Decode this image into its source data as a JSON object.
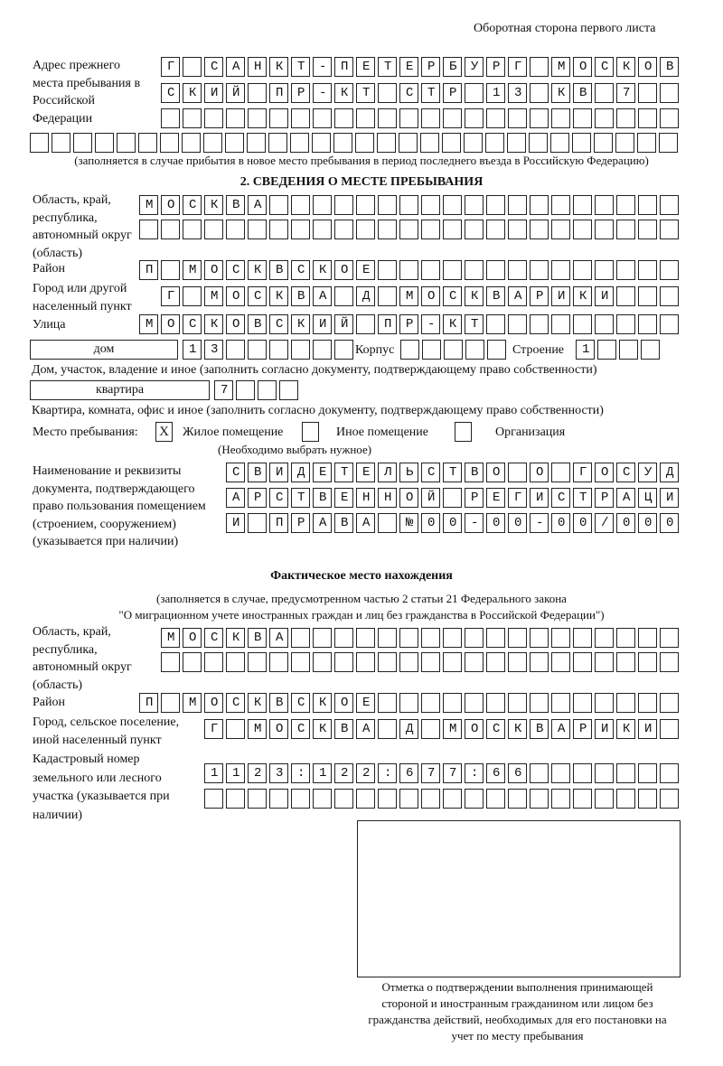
{
  "header": {
    "page_side": "Оборотная сторона первого листа"
  },
  "previous_address": {
    "label": "Адрес прежнего места пребывания в Российской Федерации",
    "rows": [
      "Г САНКТ-ПЕТЕРБУРГ МОСКОВ",
      "СКИЙ ПР-КТ СТР 13 КВ 7  ",
      "                        ",
      "                              "
    ],
    "note": "(заполняется в случае прибытия в новое место пребывания в период последнего въезда в Российскую Федерацию)"
  },
  "section2": {
    "title": "2. СВЕДЕНИЯ О МЕСТЕ ПРЕБЫВАНИЯ",
    "region": {
      "label": "Область, край, республика, автономный округ (область)",
      "rows": [
        "МОСКВА                   ",
        "                         "
      ]
    },
    "district": {
      "label": "Район",
      "rows": [
        "П МОСКВСКОЕ              "
      ]
    },
    "city": {
      "label": "Город или другой населенный пункт",
      "rows": [
        "Г МОСКВА Д МОСКВАРИКИ   "
      ]
    },
    "street": {
      "label": "Улица",
      "rows": [
        "МОСКОВСКИЙ ПР-КТ         "
      ]
    },
    "house": {
      "type": "дом",
      "number": "13      ",
      "korpus_label": "Корпус",
      "korpus": "     ",
      "building_label": "Строение",
      "building": "1   ",
      "note": "Дом, участок, владение и иное (заполнить согласно документу, подтверждающему право собственности)"
    },
    "apartment": {
      "type": "квартира",
      "number": "7   ",
      "note": "Квартира, комната, офис и иное (заполнить согласно документу, подтверждающему право собственности)"
    },
    "place_type": {
      "label": "Место пребывания:",
      "options": [
        {
          "label": "Жилое помещение",
          "mark": "X"
        },
        {
          "label": "Иное помещение",
          "mark": ""
        },
        {
          "label": "Организация",
          "mark": ""
        }
      ],
      "note": "(Необходимо выбрать нужное)"
    },
    "document": {
      "label": "Наименование и реквизиты документа, подтверждающего право пользования помещением (строением, сооружением) (указывается при наличии)",
      "rows": [
        "СВИДЕТЕЛЬСТВО О ГОСУД",
        "АРСТВЕННОЙ РЕГИСТРАЦИ",
        "И ПРАВА №00-00-00/000"
      ]
    }
  },
  "actual_location": {
    "title": "Фактическое место нахождения",
    "note_line1": "(заполняется в случае, предусмотренном частью 2 статьи 21 Федерального закона",
    "note_line2": "\"О миграционном учете иностранных граждан и лиц без гражданства в Российской Федерации\")",
    "region": {
      "label": "Область, край, республика, автономный округ (область)",
      "rows": [
        "МОСКВА                  ",
        "                        "
      ]
    },
    "district": {
      "label": "Район",
      "rows": [
        "П МОСКВСКОЕ              "
      ]
    },
    "city": {
      "label": "Город, сельское поселение, иной населенный пункт",
      "rows": [
        "Г МОСКВА Д МОСКВАРИКИ "
      ]
    },
    "cadastral": {
      "label": "Кадастровый номер земельного или лесного участка (указывается при наличии)",
      "rows": [
        "1123:122:677:66       ",
        "                      "
      ]
    }
  },
  "confirmation": {
    "caption": "Отметка о подтверждении выполнения принимающей стороной и иностранным гражданином или лицом без гражданства действий, необходимых для его постановки на учет по месту пребывания"
  }
}
